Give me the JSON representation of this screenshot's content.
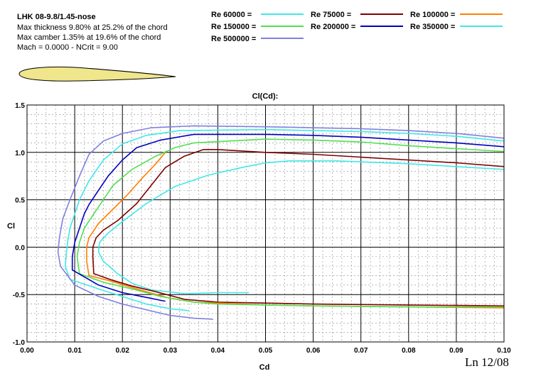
{
  "header": {
    "airfoil_name": "LHK 08-9.8/1.45-nose",
    "thickness": "Max thickness 9.80% at 25.2% of the chord",
    "camber": "Max camber 1.35% at 19.6% of the chord",
    "conditions": "Mach = 0.0000 - NCrit = 9.00"
  },
  "footer": {
    "corner_label": "Ln 12/08"
  },
  "colors": {
    "airfoil_fill": "#f0e68c",
    "major_grid": "#000000",
    "minor_grid": "#8c8c8c"
  },
  "chart_data": {
    "type": "line",
    "title": "Cl(Cd):",
    "xlabel": "Cd",
    "ylabel": "Cl",
    "xlim": [
      0.0,
      0.1
    ],
    "ylim": [
      -1.0,
      1.5
    ],
    "grid": true,
    "legend_position": "top",
    "x_ticks": [
      "0.00",
      "0.01",
      "0.02",
      "0.03",
      "0.04",
      "0.05",
      "0.06",
      "0.07",
      "0.08",
      "0.09",
      "0.10"
    ],
    "y_ticks": [
      "-1.0",
      "-0.5",
      "0.0",
      "0.5",
      "1.0",
      "1.5"
    ],
    "series": [
      {
        "name": "Re 60000 =",
        "color": "#40e8e8",
        "points": [
          [
            0.0465,
            -0.48
          ],
          [
            0.04,
            -0.48
          ],
          [
            0.033,
            -0.49
          ],
          [
            0.026,
            -0.45
          ],
          [
            0.022,
            -0.38
          ],
          [
            0.019,
            -0.28
          ],
          [
            0.016,
            -0.15
          ],
          [
            0.015,
            -0.05
          ],
          [
            0.0152,
            0.05
          ],
          [
            0.017,
            0.15
          ],
          [
            0.02,
            0.27
          ],
          [
            0.025,
            0.46
          ],
          [
            0.031,
            0.64
          ],
          [
            0.038,
            0.76
          ],
          [
            0.045,
            0.84
          ],
          [
            0.05,
            0.89
          ],
          [
            0.055,
            0.91
          ],
          [
            0.065,
            0.91
          ],
          [
            0.08,
            0.88
          ],
          [
            0.1,
            0.82
          ]
        ]
      },
      {
        "name": "Re 75000 =",
        "color": "#800000",
        "points": [
          [
            0.1,
            -0.62
          ],
          [
            0.08,
            -0.61
          ],
          [
            0.06,
            -0.6
          ],
          [
            0.05,
            -0.59
          ],
          [
            0.04,
            -0.58
          ],
          [
            0.033,
            -0.55
          ],
          [
            0.027,
            -0.47
          ],
          [
            0.022,
            -0.41
          ],
          [
            0.018,
            -0.35
          ],
          [
            0.014,
            -0.28
          ],
          [
            0.0138,
            -0.1
          ],
          [
            0.0138,
            0.0
          ],
          [
            0.0145,
            0.1
          ],
          [
            0.016,
            0.18
          ],
          [
            0.019,
            0.28
          ],
          [
            0.023,
            0.46
          ],
          [
            0.029,
            0.84
          ],
          [
            0.033,
            0.96
          ],
          [
            0.037,
            1.03
          ],
          [
            0.04,
            1.03
          ],
          [
            0.05,
            1.0
          ],
          [
            0.06,
            0.98
          ],
          [
            0.07,
            0.95
          ],
          [
            0.08,
            0.92
          ],
          [
            0.09,
            0.89
          ],
          [
            0.1,
            0.85
          ]
        ]
      },
      {
        "name": "Re 100000 =",
        "color": "#ff8000",
        "points": [
          [
            0.1,
            -0.64
          ],
          [
            0.08,
            -0.63
          ],
          [
            0.06,
            -0.62
          ],
          [
            0.05,
            -0.61
          ],
          [
            0.04,
            -0.59
          ],
          [
            0.035,
            -0.58
          ],
          [
            0.03,
            -0.54
          ],
          [
            0.025,
            -0.47
          ],
          [
            0.021,
            -0.41
          ],
          [
            0.017,
            -0.35
          ],
          [
            0.013,
            -0.3
          ],
          [
            0.0125,
            -0.15
          ],
          [
            0.0125,
            0.0
          ],
          [
            0.013,
            0.1
          ],
          [
            0.015,
            0.25
          ],
          [
            0.018,
            0.4
          ],
          [
            0.021,
            0.55
          ],
          [
            0.024,
            0.72
          ],
          [
            0.027,
            0.88
          ],
          [
            0.029,
            1.0
          ]
        ]
      },
      {
        "name": "Re 150000 =",
        "color": "#50e050",
        "points": [
          [
            0.1,
            -0.63
          ],
          [
            0.08,
            -0.63
          ],
          [
            0.06,
            -0.62
          ],
          [
            0.05,
            -0.61
          ],
          [
            0.04,
            -0.6
          ],
          [
            0.035,
            -0.58
          ],
          [
            0.028,
            -0.52
          ],
          [
            0.022,
            -0.44
          ],
          [
            0.016,
            -0.37
          ],
          [
            0.011,
            -0.28
          ],
          [
            0.0105,
            -0.1
          ],
          [
            0.011,
            0.05
          ],
          [
            0.012,
            0.2
          ],
          [
            0.014,
            0.35
          ],
          [
            0.016,
            0.5
          ],
          [
            0.018,
            0.65
          ],
          [
            0.022,
            0.82
          ],
          [
            0.027,
            0.96
          ],
          [
            0.031,
            1.05
          ],
          [
            0.035,
            1.1
          ],
          [
            0.05,
            1.14
          ],
          [
            0.06,
            1.13
          ],
          [
            0.07,
            1.11
          ],
          [
            0.08,
            1.07
          ],
          [
            0.09,
            1.04
          ],
          [
            0.1,
            1.01
          ]
        ]
      },
      {
        "name": "Re 200000 =",
        "color": "#0000c0",
        "points": [
          [
            0.029,
            -0.57
          ],
          [
            0.025,
            -0.53
          ],
          [
            0.02,
            -0.48
          ],
          [
            0.015,
            -0.4
          ],
          [
            0.0095,
            -0.24
          ],
          [
            0.0095,
            -0.1
          ],
          [
            0.01,
            0.05
          ],
          [
            0.011,
            0.2
          ],
          [
            0.012,
            0.35
          ],
          [
            0.013,
            0.45
          ],
          [
            0.015,
            0.6
          ],
          [
            0.017,
            0.75
          ],
          [
            0.02,
            0.92
          ],
          [
            0.023,
            1.05
          ],
          [
            0.028,
            1.13
          ],
          [
            0.035,
            1.19
          ],
          [
            0.05,
            1.19
          ],
          [
            0.06,
            1.18
          ],
          [
            0.07,
            1.16
          ],
          [
            0.08,
            1.13
          ],
          [
            0.09,
            1.1
          ],
          [
            0.1,
            1.06
          ]
        ]
      },
      {
        "name": "Re 350000 =",
        "color": "#40e8e8",
        "points": [
          [
            0.034,
            -0.67
          ],
          [
            0.03,
            -0.65
          ],
          [
            0.025,
            -0.6
          ],
          [
            0.02,
            -0.52
          ],
          [
            0.015,
            -0.44
          ],
          [
            0.009,
            -0.34
          ],
          [
            0.008,
            -0.2
          ],
          [
            0.0082,
            -0.1
          ],
          [
            0.0085,
            0.05
          ],
          [
            0.009,
            0.2
          ],
          [
            0.01,
            0.35
          ],
          [
            0.011,
            0.5
          ],
          [
            0.013,
            0.7
          ],
          [
            0.016,
            0.92
          ],
          [
            0.02,
            1.09
          ],
          [
            0.025,
            1.18
          ],
          [
            0.032,
            1.23
          ],
          [
            0.05,
            1.24
          ],
          [
            0.06,
            1.23
          ],
          [
            0.07,
            1.22
          ],
          [
            0.08,
            1.2
          ],
          [
            0.09,
            1.17
          ],
          [
            0.1,
            1.12
          ]
        ]
      },
      {
        "name": "Re 500000 =",
        "color": "#8080e0",
        "points": [
          [
            0.039,
            -0.76
          ],
          [
            0.035,
            -0.75
          ],
          [
            0.03,
            -0.72
          ],
          [
            0.025,
            -0.66
          ],
          [
            0.02,
            -0.6
          ],
          [
            0.015,
            -0.52
          ],
          [
            0.01,
            -0.4
          ],
          [
            0.007,
            -0.2
          ],
          [
            0.0065,
            -0.05
          ],
          [
            0.0068,
            0.1
          ],
          [
            0.0075,
            0.3
          ],
          [
            0.009,
            0.5
          ],
          [
            0.011,
            0.75
          ],
          [
            0.013,
            0.98
          ],
          [
            0.016,
            1.12
          ],
          [
            0.02,
            1.2
          ],
          [
            0.026,
            1.26
          ],
          [
            0.035,
            1.28
          ],
          [
            0.05,
            1.27
          ],
          [
            0.06,
            1.26
          ],
          [
            0.07,
            1.25
          ],
          [
            0.08,
            1.23
          ],
          [
            0.09,
            1.2
          ],
          [
            0.1,
            1.15
          ]
        ]
      }
    ]
  }
}
